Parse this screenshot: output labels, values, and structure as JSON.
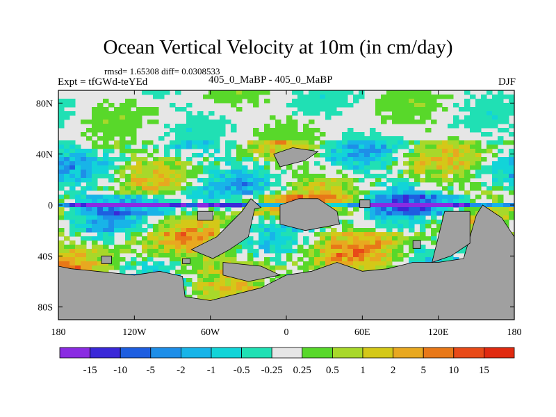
{
  "header": {
    "title": "Ocean Vertical Velocity at 10m (in cm/day)",
    "stats": "rmsd= 1.65308 diff= 0.0308533",
    "experiment": "Expt = tfGWd-teYEd",
    "comparison": "405_0_MaBP - 405_0_MaBP",
    "season": "DJF"
  },
  "chart_data": {
    "type": "heatmap",
    "title": "Ocean Vertical Velocity at 10m (in cm/day)",
    "x_ticks": [
      "180",
      "120W",
      "60W",
      "0",
      "60E",
      "120E",
      "180"
    ],
    "y_ticks": [
      "80N",
      "40N",
      "0",
      "40S",
      "80S"
    ],
    "xlim": [
      -180,
      180
    ],
    "ylim": [
      -90,
      90
    ],
    "x_tick_values": [
      -180,
      -120,
      -60,
      0,
      60,
      120,
      180
    ],
    "y_tick_values": [
      80,
      40,
      0,
      -40,
      -80
    ],
    "colorbar": {
      "labels": [
        "-15",
        "-10",
        "-5",
        "-2",
        "-1",
        "-0.5",
        "-0.25",
        "0.25",
        "0.5",
        "1",
        "2",
        "5",
        "10",
        "15"
      ],
      "colors": [
        "#8a2be2",
        "#3a28d8",
        "#1e5ee0",
        "#1e8ee8",
        "#18b4e8",
        "#12d4d8",
        "#20e0b4",
        "#e6e6e6",
        "#58d82a",
        "#a8d82a",
        "#d4c818",
        "#e8a820",
        "#e87818",
        "#e84a18",
        "#e02a10"
      ]
    },
    "land_color": "#a0a0a0",
    "missing_color": "#e6e6e6"
  }
}
